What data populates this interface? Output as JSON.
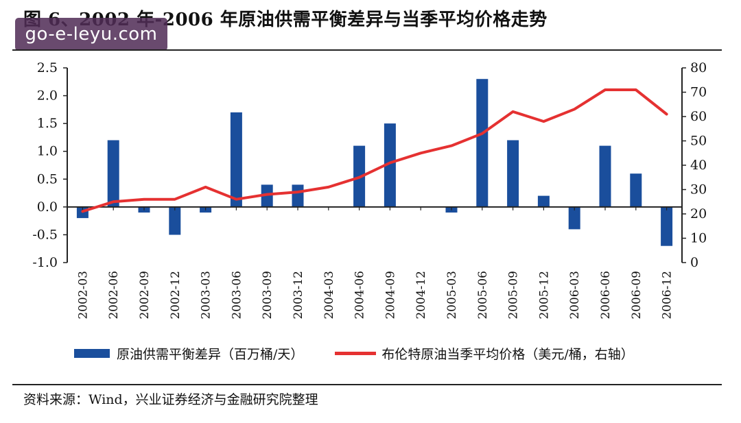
{
  "title": "图 6、2002 年-2006 年原油供需平衡差异与当季平均价格走势",
  "watermark": "go-e-leyu.com",
  "source": "资料来源：Wind，兴业证券经济与金融研究院整理",
  "colors": {
    "bar": "#1a4e9c",
    "line": "#e53131",
    "axis": "#222222"
  },
  "chart_data": {
    "type": "bar",
    "categories": [
      "2002-03",
      "2002-06",
      "2002-09",
      "2002-12",
      "2003-03",
      "2003-06",
      "2003-09",
      "2003-12",
      "2004-03",
      "2004-06",
      "2004-09",
      "2004-12",
      "2005-03",
      "2005-06",
      "2005-09",
      "2005-12",
      "2006-03",
      "2006-06",
      "2006-09",
      "2006-12"
    ],
    "series": [
      {
        "name": "原油供需平衡差异（百万桶/天）",
        "type": "bar",
        "axis": "left",
        "values": [
          -0.2,
          1.2,
          -0.1,
          -0.5,
          -0.1,
          1.7,
          0.4,
          0.4,
          0,
          1.1,
          1.5,
          0,
          -0.1,
          2.3,
          1.2,
          0.2,
          -0.4,
          1.1,
          0.6,
          -0.7
        ]
      },
      {
        "name": "布伦特原油当季平均价格（美元/桶，右轴）",
        "type": "line",
        "axis": "right",
        "values": [
          21,
          25,
          26,
          26,
          31,
          26,
          28,
          29,
          31,
          35,
          41,
          45,
          48,
          53,
          62,
          58,
          63,
          71,
          71,
          61
        ]
      }
    ],
    "y_left": {
      "ylim": [
        -1.0,
        2.5
      ],
      "ticks": [
        "2.5",
        "2.0",
        "1.5",
        "1.0",
        "0.5",
        "0.0",
        "-0.5",
        "-1.0"
      ]
    },
    "y_right": {
      "ylim": [
        0,
        80
      ],
      "ticks": [
        "80",
        "70",
        "60",
        "50",
        "40",
        "30",
        "20",
        "10",
        "0"
      ]
    },
    "legend_position": "bottom",
    "grid": false
  }
}
